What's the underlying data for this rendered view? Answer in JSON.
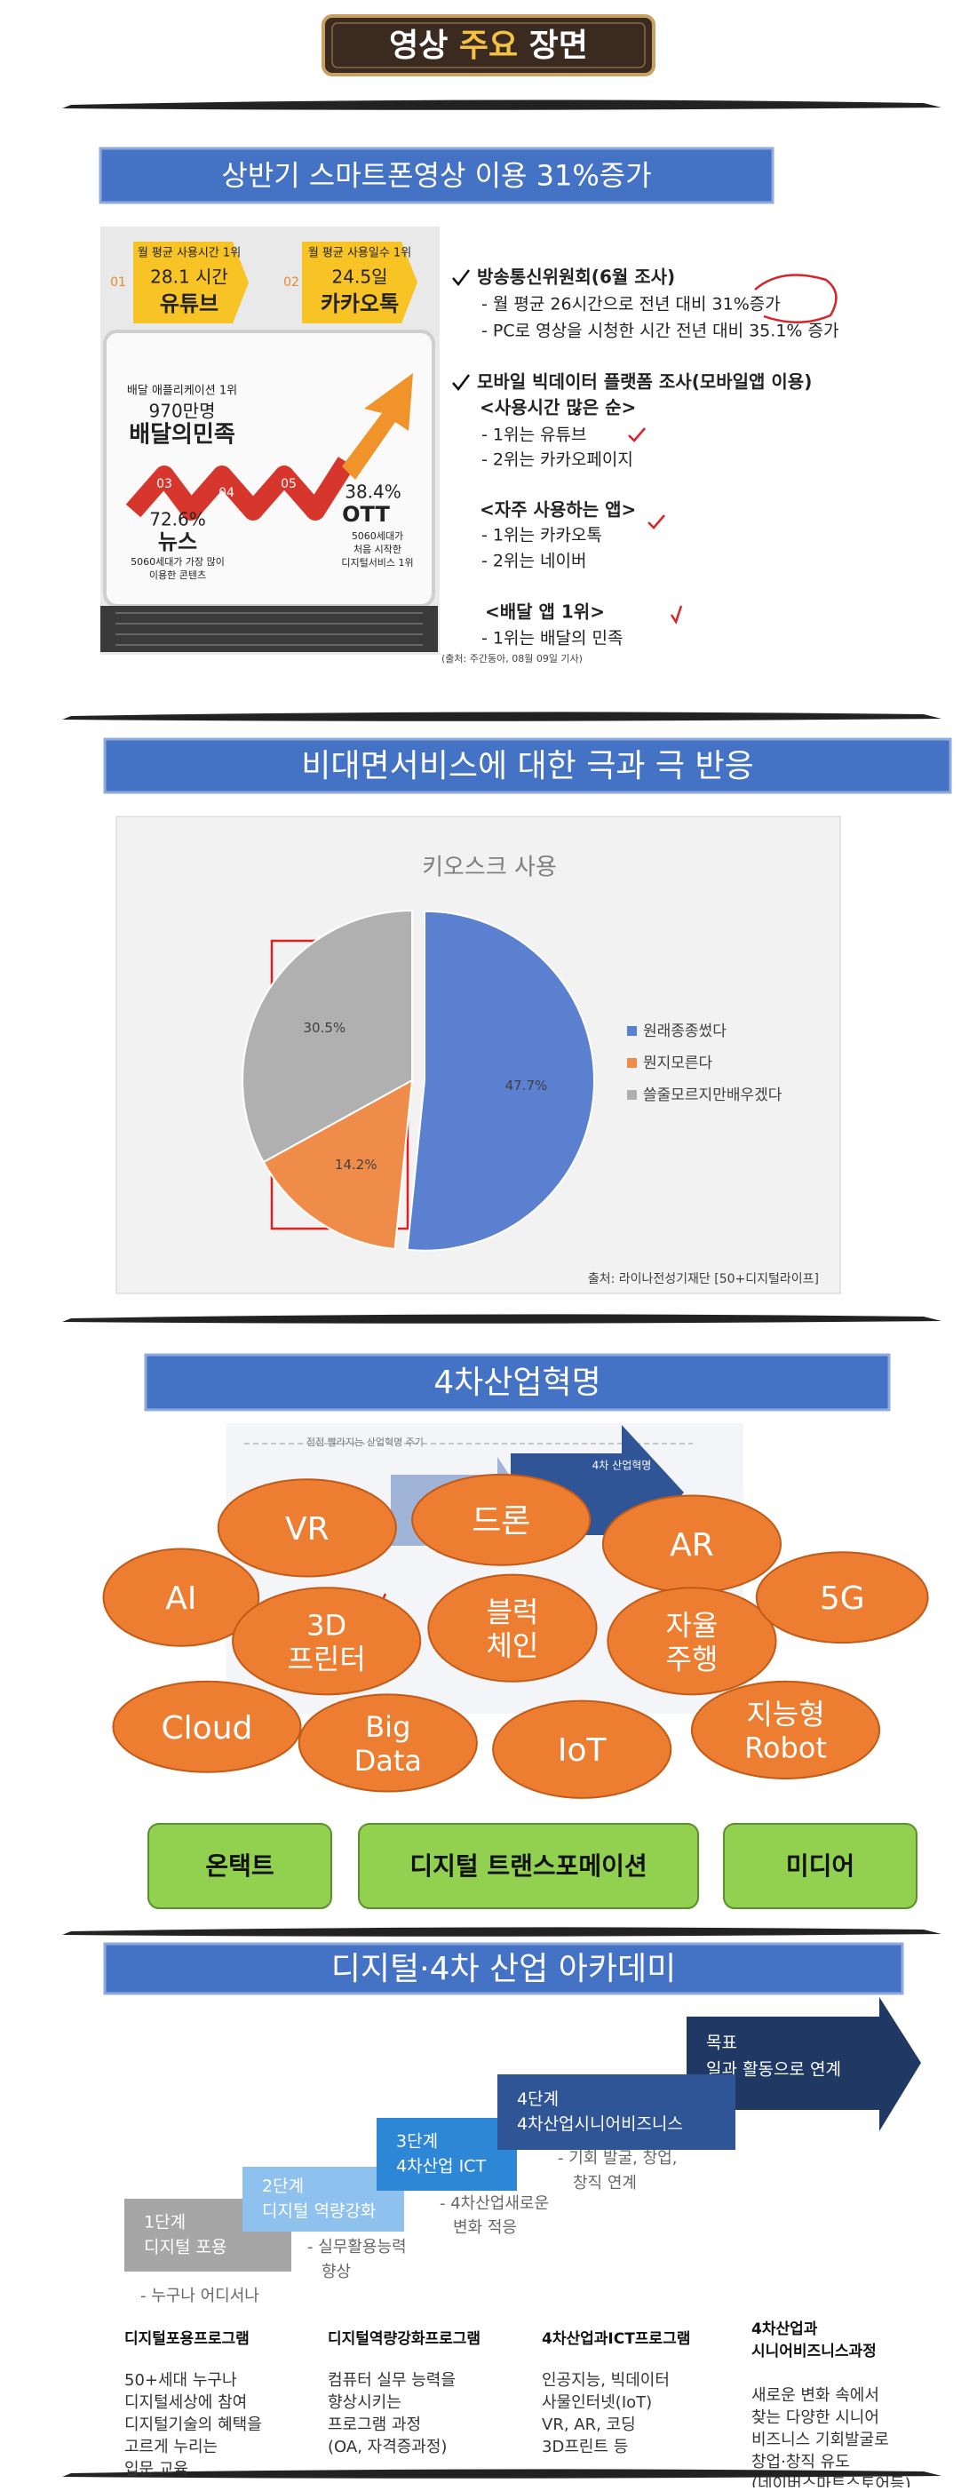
{
  "header": {
    "title_parts": [
      "영상",
      "주요",
      "장면"
    ]
  },
  "section1": {
    "title": "상반기 스마트폰영상 이용 31%증가",
    "infographic": {
      "tags": [
        {
          "number": "01",
          "caption": "월 평균 사용시간 1위",
          "value": "28.1 시간",
          "name": "유튜브"
        },
        {
          "number": "02",
          "caption": "월 평균 사용일수 1위",
          "value": "24.5일",
          "name": "카카오톡"
        }
      ],
      "delivery": {
        "caption": "배달 애플리케이션 1위",
        "value": "970만명",
        "name": "배달의민족"
      },
      "steps": [
        "03",
        "04",
        "05"
      ],
      "news": {
        "value": "72.6%",
        "name": "뉴스",
        "caption": [
          "5060세대가 가장 많이",
          "이용한 콘텐츠"
        ]
      },
      "ott": {
        "value": "38.4%",
        "name": "OTT",
        "caption": [
          "5060세대가",
          "처음 시작한",
          "디지털서비스 1위"
        ]
      }
    },
    "notes": [
      {
        "heading": "방송통신위원회(6월 조사)",
        "lines": [
          "- 월 평균 26시간으로 전년 대비 31%증가",
          "- PC로 영상을 시청한 시간 전년 대비 35.1% 증가"
        ]
      },
      {
        "heading": "모바일 빅데이터 플랫폼 조사(모바일앱 이용)",
        "groups": [
          {
            "heading": "<사용시간 많은 순>",
            "lines": [
              "- 1위는 유튜브",
              "- 2위는 카카오페이지"
            ]
          },
          {
            "heading": "<자주 사용하는 앱>",
            "lines": [
              "- 1위는 카카오톡",
              "- 2위는 네이버"
            ]
          },
          {
            "heading": "<배달 앱 1위>",
            "lines": [
              "- 1위는 배달의 민족"
            ]
          }
        ]
      }
    ],
    "source": "(출처: 주간동아, 08월 09일 기사)"
  },
  "section2": {
    "title": "비대면서비스에 대한 극과 극 반응"
  },
  "chart_data": {
    "type": "pie",
    "title": "키오스크 사용",
    "categories": [
      "원래종종썼다",
      "뭔지모른다",
      "쓸줄모르지만배우겠다"
    ],
    "values": [
      47.7,
      14.2,
      30.5
    ],
    "value_labels": [
      "47.7%",
      "14.2%",
      "30.5%"
    ],
    "colors": [
      "#5a80cf",
      "#f08c4a",
      "#b0b0b0"
    ],
    "legend": "right",
    "source": "출처: 라이나전성기재단 [50+디지털라이프]"
  },
  "section3": {
    "title": "4차산업혁명",
    "background": {
      "caption": "점점 빨라지는 산업혁명 주기",
      "stage": "4차 산업혁명"
    },
    "bubbles": [
      [
        "VR"
      ],
      [
        "드론"
      ],
      [
        "AR"
      ],
      [
        "AI"
      ],
      [
        "3D",
        "프린터"
      ],
      [
        "블럭",
        "체인"
      ],
      [
        "자율",
        "주행"
      ],
      [
        "5G"
      ],
      [
        "Cloud"
      ],
      [
        "Big",
        "Data"
      ],
      [
        "IoT"
      ],
      [
        "지능형",
        "Robot"
      ]
    ],
    "keywords": [
      "온택트",
      "디지털 트랜스포메이션",
      "미디어"
    ]
  },
  "section4": {
    "title": "디지털·4차 산업 아카데미",
    "steps": [
      {
        "stage": "1단계",
        "name": "디지털 포용",
        "note": [
          "- 누구나 어디서나"
        ]
      },
      {
        "stage": "2단계",
        "name": "디지털 역량강화",
        "note": [
          "- 실무활용능력",
          "향상"
        ]
      },
      {
        "stage": "3단계",
        "name": "4차산업 ICT",
        "note": [
          "- 4차산업새로운",
          "변화 적응"
        ]
      },
      {
        "stage": "4단계",
        "name": "4차산업시니어비즈니스",
        "note": [
          "- 기회 발굴, 창업,",
          "창직 연계"
        ]
      }
    ],
    "goal": {
      "stage": "목표",
      "name": "일과 활동으로 연계"
    },
    "programs": [
      {
        "title": [
          "디지털포용프로그램"
        ],
        "body": [
          "50+세대 누구나",
          "디지털세상에 참여",
          "디지털기술의 혜택을",
          "고르게 누리는",
          "입문 교육"
        ]
      },
      {
        "title": [
          "디지털역량강화프로그램"
        ],
        "body": [
          "컴퓨터 실무 능력을",
          "향상시키는",
          "프로그램 과정",
          "(OA, 자격증과정)"
        ]
      },
      {
        "title": [
          "4차산업과ICT프로그램"
        ],
        "body": [
          "인공지능, 빅데이터",
          "사물인터넷(IoT)",
          "VR, AR, 코딩",
          "3D프린트 등"
        ]
      },
      {
        "title": [
          "4차산업과",
          "시니어비즈니스과정"
        ],
        "body": [
          "새로운 변화 속에서",
          "찾는 다양한 시니어",
          "비즈니스 기회발굴로",
          "창업·창직 유도",
          "(네이버스마트스토어등)"
        ]
      }
    ]
  }
}
